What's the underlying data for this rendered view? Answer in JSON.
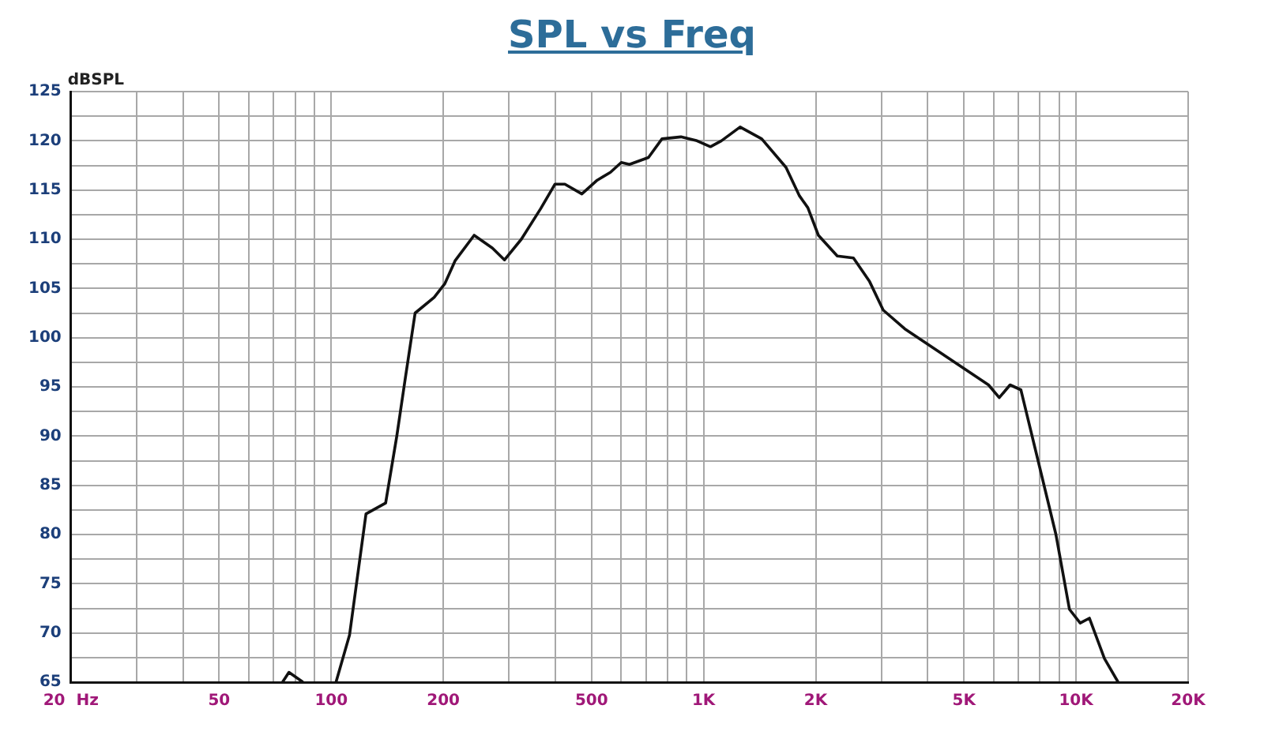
{
  "chart_data": {
    "type": "line",
    "title": "SPL vs Freq",
    "ylabel": "dBSPL",
    "log": "x",
    "grid": true,
    "legend": false,
    "marker": "none",
    "line_style": "solid",
    "xlim": [
      20,
      20000
    ],
    "xticks": [
      {
        "value": 20,
        "label": "20  Hz"
      },
      {
        "value": 30,
        "label": null
      },
      {
        "value": 40,
        "label": null
      },
      50,
      {
        "value": 60,
        "label": null
      },
      {
        "value": 70,
        "label": null
      },
      {
        "value": 80,
        "label": null
      },
      {
        "value": 90,
        "label": null
      },
      100,
      200,
      {
        "value": 300,
        "label": null
      },
      {
        "value": 400,
        "label": null
      },
      500,
      {
        "value": 600,
        "label": null
      },
      {
        "value": 700,
        "label": null
      },
      {
        "value": 800,
        "label": null
      },
      {
        "value": 900,
        "label": null
      },
      {
        "value": 1000,
        "label": "1K"
      },
      {
        "value": 2000,
        "label": "2K"
      },
      {
        "value": 3000,
        "label": null
      },
      {
        "value": 4000,
        "label": null
      },
      {
        "value": 5000,
        "label": "5K"
      },
      {
        "value": 6000,
        "label": null
      },
      {
        "value": 7000,
        "label": null
      },
      {
        "value": 8000,
        "label": null
      },
      {
        "value": 9000,
        "label": null
      },
      {
        "value": 10000,
        "label": "10K"
      },
      {
        "value": 20000,
        "label": "20K"
      }
    ],
    "ylim": [
      65,
      125
    ],
    "yticks": [
      65,
      {
        "value": 67.5,
        "label": null
      },
      70,
      {
        "value": 72.5,
        "label": null
      },
      75,
      {
        "value": 77.5,
        "label": null
      },
      80,
      {
        "value": 82.5,
        "label": null
      },
      85,
      {
        "value": 87.5,
        "label": null
      },
      90,
      {
        "value": 92.5,
        "label": null
      },
      95,
      {
        "value": 97.5,
        "label": null
      },
      100,
      {
        "value": 102.5,
        "label": null
      },
      105,
      {
        "value": 107.5,
        "label": null
      },
      110,
      {
        "value": 112.5,
        "label": null
      },
      115,
      {
        "value": 117.5,
        "label": null
      },
      120,
      {
        "value": 122.5,
        "label": null
      },
      125
    ],
    "series": [
      {
        "color": "#111111",
        "x": [
          74,
          77,
          84,
          92,
          103,
          112,
          124,
          140,
          150,
          158,
          168,
          189,
          202,
          215,
          242,
          271,
          292,
          324,
          365,
          399,
          424,
          471,
          518,
          562,
          601,
          632,
          711,
          773,
          869,
          960,
          1043,
          1116,
          1253,
          1432,
          1664,
          1809,
          1905,
          2033,
          2285,
          2525,
          2790,
          3035,
          3467,
          5820,
          6220,
          6650,
          7110,
          7990,
          8830,
          9600,
          10260,
          10860,
          11920,
          12970
        ],
        "values": [
          65,
          66,
          65,
          null,
          65,
          69.8,
          82.1,
          83.2,
          90,
          95.8,
          102.5,
          104.1,
          105.5,
          107.8,
          110.4,
          109.1,
          107.9,
          110,
          113.1,
          115.6,
          115.6,
          114.6,
          116,
          116.8,
          117.8,
          117.6,
          118.3,
          120.2,
          120.4,
          120,
          119.4,
          120,
          121.4,
          120.2,
          117.3,
          114.4,
          113.2,
          110.4,
          108.3,
          108.1,
          105.7,
          102.8,
          100.9,
          95.2,
          93.9,
          95.2,
          94.7,
          86.8,
          80,
          72.4,
          71,
          71.5,
          67.4,
          65
        ]
      }
    ]
  }
}
